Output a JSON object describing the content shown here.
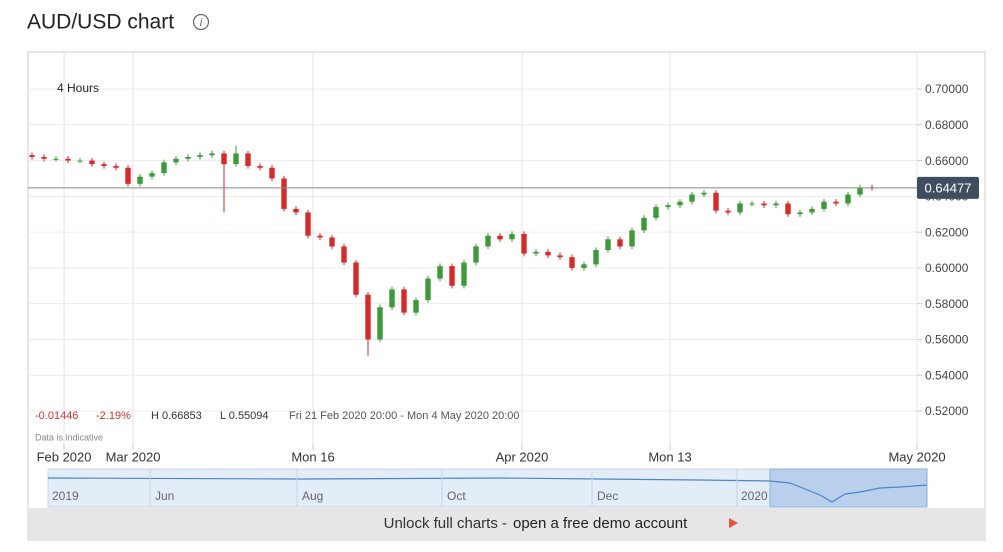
{
  "header": {
    "title": "AUD/USD chart"
  },
  "chart_data": {
    "type": "candlestick",
    "interval": "4 Hours",
    "up_color": "#3d9a3a",
    "down_color": "#d42a2a",
    "open": [
      0.663,
      0.662,
      0.661,
      0.661,
      0.66,
      0.66,
      0.658,
      0.657,
      0.656,
      0.647,
      0.651,
      0.653,
      0.659,
      0.661,
      0.662,
      0.663,
      0.664,
      0.658,
      0.664,
      0.657,
      0.656,
      0.65,
      0.633,
      0.631,
      0.618,
      0.617,
      0.612,
      0.603,
      0.585,
      0.56,
      0.578,
      0.588,
      0.575,
      0.582,
      0.594,
      0.601,
      0.59,
      0.603,
      0.612,
      0.618,
      0.616,
      0.619,
      0.608,
      0.609,
      0.607,
      0.606,
      0.6,
      0.602,
      0.61,
      0.616,
      0.612,
      0.621,
      0.628,
      0.634,
      0.635,
      0.637,
      0.641,
      0.642,
      0.632,
      0.631,
      0.636,
      0.636,
      0.635,
      0.636,
      0.63,
      0.631,
      0.633,
      0.637,
      0.636,
      0.641,
      0.645
    ],
    "high": [
      0.6645,
      0.6635,
      0.6625,
      0.6625,
      0.6615,
      0.6615,
      0.6595,
      0.6585,
      0.6575,
      0.6525,
      0.6545,
      0.6605,
      0.6625,
      0.6635,
      0.6645,
      0.6655,
      0.6655,
      0.6685,
      0.6655,
      0.6585,
      0.6575,
      0.6515,
      0.6345,
      0.6325,
      0.6195,
      0.6185,
      0.6135,
      0.6045,
      0.5865,
      0.5795,
      0.5895,
      0.5895,
      0.5835,
      0.5955,
      0.6025,
      0.6025,
      0.6045,
      0.6135,
      0.6195,
      0.6195,
      0.6205,
      0.6205,
      0.6105,
      0.6105,
      0.6085,
      0.6075,
      0.6035,
      0.6115,
      0.6175,
      0.6175,
      0.6225,
      0.6295,
      0.6355,
      0.6365,
      0.6385,
      0.6425,
      0.6435,
      0.6435,
      0.6335,
      0.6375,
      0.6375,
      0.6375,
      0.6375,
      0.6375,
      0.6325,
      0.6345,
      0.6385,
      0.6385,
      0.6425,
      0.6465,
      0.6465
    ],
    "low": [
      0.6605,
      0.6595,
      0.6595,
      0.6585,
      0.6585,
      0.6565,
      0.6555,
      0.6545,
      0.6455,
      0.6455,
      0.6495,
      0.6515,
      0.6575,
      0.6595,
      0.6605,
      0.6615,
      0.631,
      0.6565,
      0.6555,
      0.6545,
      0.6485,
      0.6315,
      0.6295,
      0.6165,
      0.6155,
      0.6105,
      0.6015,
      0.5835,
      0.5509,
      0.5585,
      0.5765,
      0.5735,
      0.5735,
      0.5805,
      0.5925,
      0.5885,
      0.5885,
      0.6015,
      0.6105,
      0.6145,
      0.6145,
      0.6065,
      0.6065,
      0.6055,
      0.6045,
      0.5985,
      0.5985,
      0.6005,
      0.6085,
      0.6105,
      0.6105,
      0.6195,
      0.6265,
      0.6325,
      0.6335,
      0.6355,
      0.6395,
      0.6305,
      0.6295,
      0.6295,
      0.6345,
      0.6335,
      0.6335,
      0.6285,
      0.6285,
      0.6295,
      0.6315,
      0.6345,
      0.6345,
      0.6395,
      0.6433
    ],
    "close": [
      0.662,
      0.661,
      0.661,
      0.66,
      0.66,
      0.658,
      0.657,
      0.656,
      0.647,
      0.651,
      0.653,
      0.659,
      0.661,
      0.662,
      0.663,
      0.664,
      0.658,
      0.664,
      0.657,
      0.656,
      0.65,
      0.633,
      0.631,
      0.618,
      0.617,
      0.612,
      0.603,
      0.585,
      0.56,
      0.578,
      0.588,
      0.575,
      0.582,
      0.594,
      0.601,
      0.59,
      0.603,
      0.612,
      0.618,
      0.616,
      0.619,
      0.608,
      0.609,
      0.607,
      0.606,
      0.6,
      0.602,
      0.61,
      0.616,
      0.612,
      0.621,
      0.628,
      0.634,
      0.635,
      0.637,
      0.641,
      0.642,
      0.632,
      0.631,
      0.636,
      0.636,
      0.635,
      0.636,
      0.63,
      0.631,
      0.633,
      0.637,
      0.636,
      0.641,
      0.645,
      0.6448
    ],
    "xlim": [
      -0.333,
      73.75
    ],
    "xticks": [
      {
        "value": 2.67,
        "label": "Feb 2020"
      },
      {
        "value": 8.42,
        "label": "Mar 2020"
      },
      {
        "value": 23.42,
        "label": "Mon 16"
      },
      {
        "value": 40.83,
        "label": "Apr 2020"
      },
      {
        "value": 53.17,
        "label": "Mon 13"
      },
      {
        "value": 73.75,
        "label": "May 2020"
      }
    ],
    "ylim": [
      0.501,
      0.7207
    ],
    "yticks": [
      {
        "value": 0.52,
        "label": "0.52000"
      },
      {
        "value": 0.54,
        "label": "0.54000"
      },
      {
        "value": 0.56,
        "label": "0.56000"
      },
      {
        "value": 0.58,
        "label": "0.58000"
      },
      {
        "value": 0.6,
        "label": "0.60000"
      },
      {
        "value": 0.62,
        "label": "0.62000"
      },
      {
        "value": 0.64,
        "label": "0.64000"
      },
      {
        "value": 0.66,
        "label": "0.66000"
      },
      {
        "value": 0.68,
        "label": "0.68000"
      },
      {
        "value": 0.7,
        "label": "0.70000"
      }
    ],
    "grid": true,
    "last_price": {
      "value": 0.64477,
      "label": "0.64477"
    },
    "stats": {
      "change": "-0.01446",
      "change_pct": "-2.19%",
      "high": "H 0.66853",
      "low": "L 0.55094",
      "range": "Fri 21 Feb 2020 20:00 - Mon 4 May 2020 20:00"
    },
    "note": "Data is indicative"
  },
  "navigator": {
    "labels": [
      "2019",
      "Jun",
      "Aug",
      "Oct",
      "Dec",
      "2020"
    ]
  },
  "footer": {
    "text": "Unlock full charts - ",
    "link": "open a free demo account"
  }
}
